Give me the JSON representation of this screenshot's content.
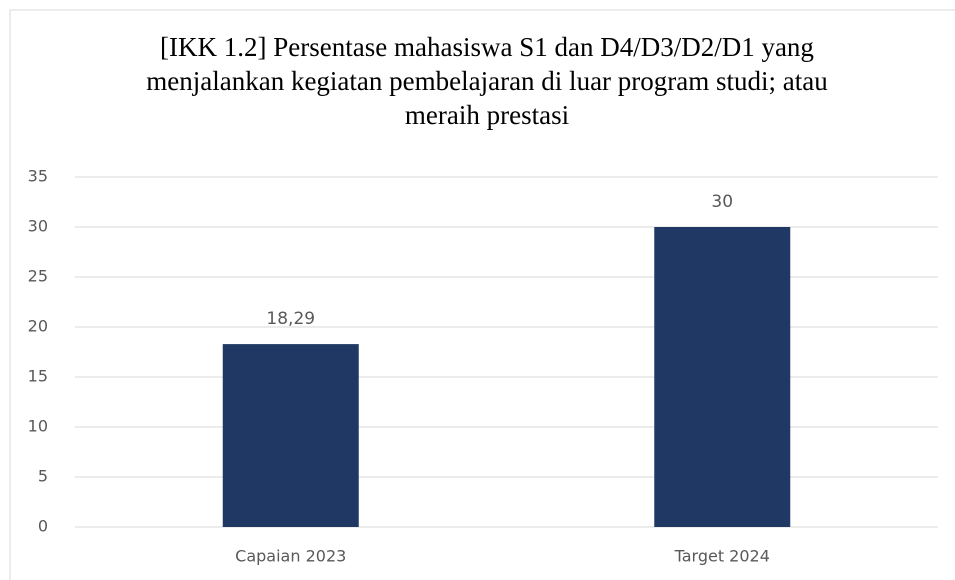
{
  "chart_data": {
    "type": "bar",
    "title": "[IKK 1.2] Persentase mahasiswa S1 dan D4/D3/D2/D1 yang menjalankan kegiatan pembelajaran di luar program studi; atau meraih prestasi",
    "categories": [
      "Capaian 2023",
      "Target 2024"
    ],
    "values": [
      18.29,
      30
    ],
    "value_labels": [
      "18,29",
      "30"
    ],
    "color": "#203864",
    "ylim": [
      0,
      35
    ],
    "yticks": [
      0,
      5,
      10,
      15,
      20,
      25,
      30,
      35
    ],
    "grid": true
  }
}
